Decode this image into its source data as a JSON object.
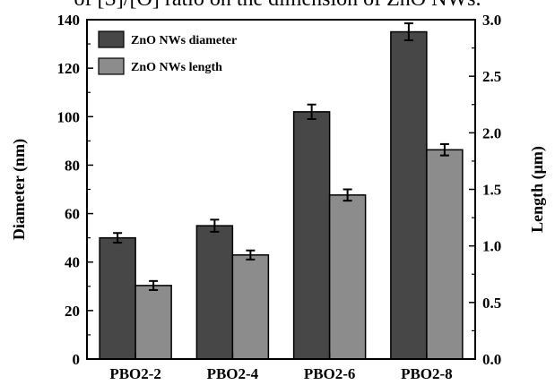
{
  "caption_fragment": "of [S]/[O] ratio on the dimension of ZnO NWs.",
  "chart_data": {
    "type": "bar",
    "categories": [
      "PBO2-2",
      "PBO2-4",
      "PBO2-6",
      "PBO2-8"
    ],
    "series": [
      {
        "name": "ZnO NWs diameter",
        "axis": "left",
        "color": "#474747",
        "values": [
          50,
          55,
          102,
          135
        ],
        "errors": [
          2,
          2.5,
          3,
          3.5
        ]
      },
      {
        "name": "ZnO NWs length",
        "axis": "right",
        "color": "#8c8c8c",
        "values": [
          0.65,
          0.92,
          1.45,
          1.85
        ],
        "errors": [
          0.04,
          0.04,
          0.05,
          0.05
        ]
      }
    ],
    "ylabel": "Diameter (nm)",
    "y2label": "Length (μm)",
    "ylim": [
      0,
      140
    ],
    "y2lim": [
      0,
      3.0
    ],
    "yticks": [
      "0",
      "20",
      "40",
      "60",
      "80",
      "100",
      "120",
      "140"
    ],
    "y2ticks": [
      "0.0",
      "0.5",
      "1.0",
      "1.5",
      "2.0",
      "2.5",
      "3.0"
    ],
    "legend_position": "top-left",
    "grid": false
  }
}
